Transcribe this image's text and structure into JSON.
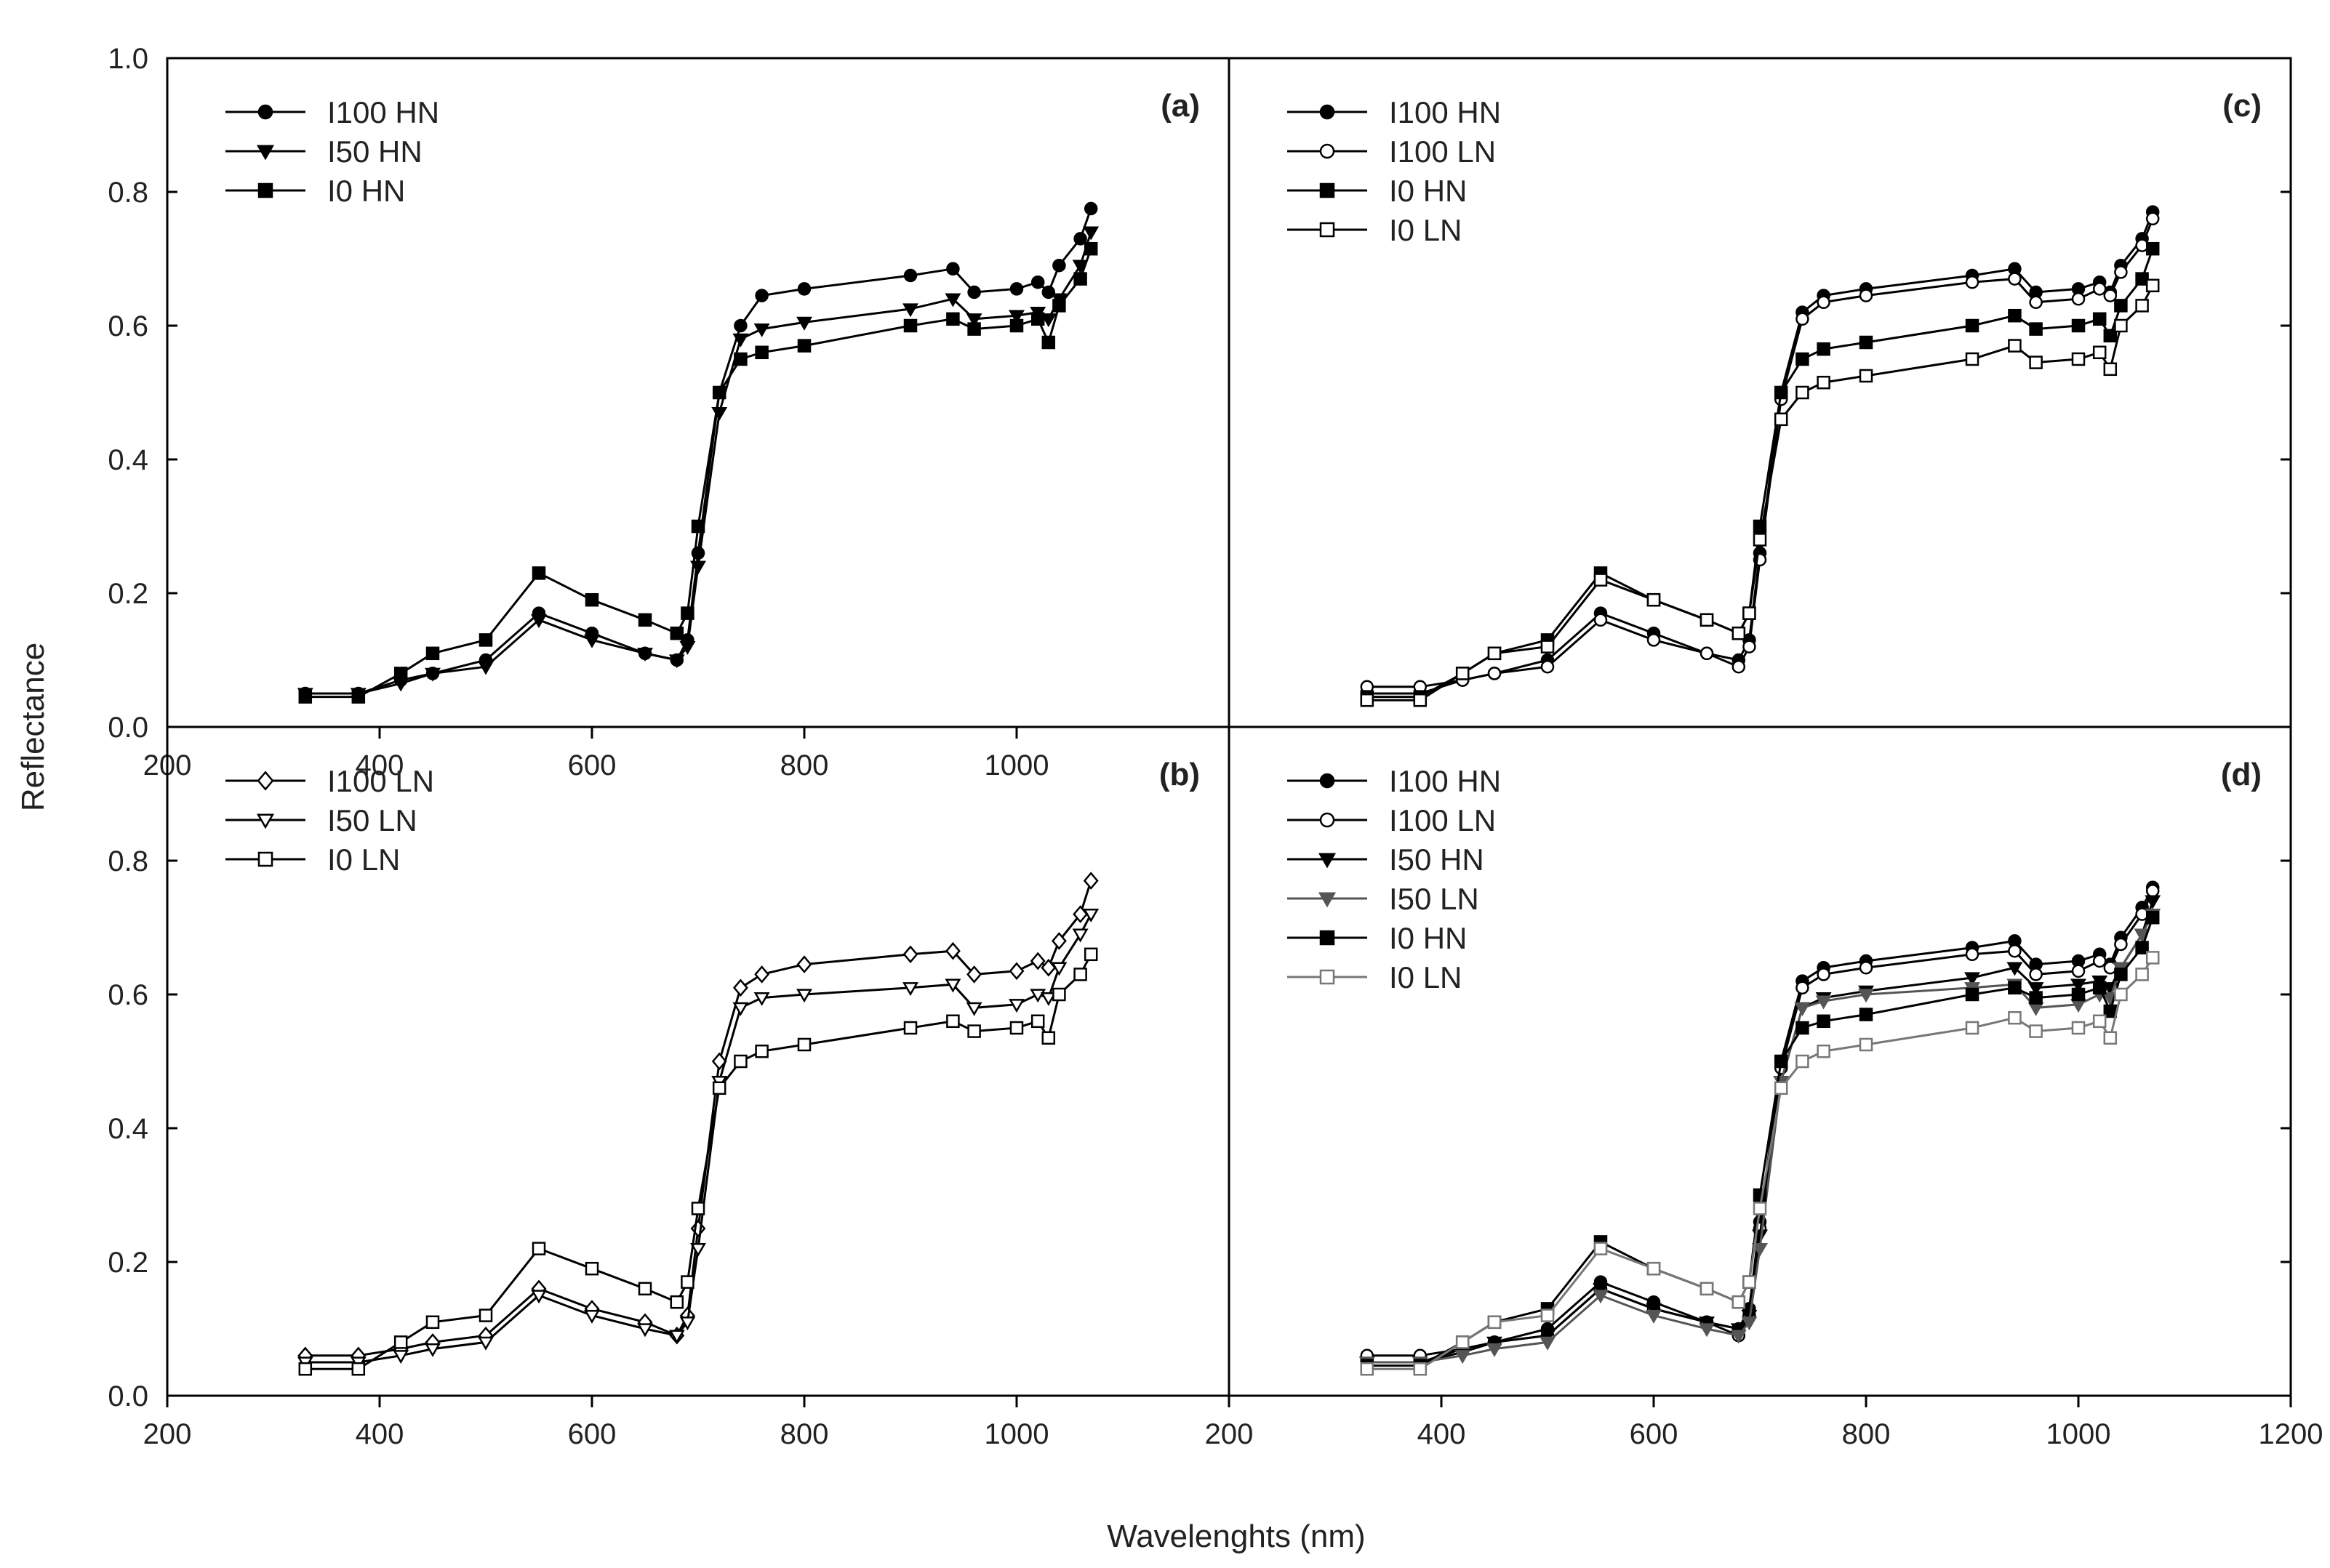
{
  "figure": {
    "x_axis_title": "Wavelenghts (nm)",
    "y_axis_title": "Reflectance"
  },
  "chart_data": [
    {
      "type": "line",
      "panel_label": "(a)",
      "xlim": [
        200,
        1200
      ],
      "ylim": [
        0.0,
        1.0
      ],
      "x_ticks": [
        "200",
        "400",
        "600",
        "800",
        "1000"
      ],
      "y_ticks": [
        "0.0",
        "0.2",
        "0.4",
        "0.6",
        "0.8",
        "1.0"
      ],
      "legend": [
        "I100 HN",
        "I50 HN",
        "I0 HN"
      ],
      "legend_position": "top-left",
      "x": [
        330,
        380,
        420,
        450,
        500,
        550,
        600,
        650,
        680,
        690,
        700,
        720,
        740,
        760,
        800,
        900,
        940,
        960,
        1000,
        1020,
        1030,
        1040,
        1060,
        1070
      ],
      "series": [
        {
          "name": "I100 HN",
          "color": "#000000",
          "marker": "circle",
          "fill": "filled",
          "values": [
            0.05,
            0.05,
            0.07,
            0.08,
            0.1,
            0.17,
            0.14,
            0.11,
            0.1,
            0.13,
            0.26,
            0.5,
            0.6,
            0.645,
            0.655,
            0.675,
            0.685,
            0.65,
            0.655,
            0.665,
            0.65,
            0.69,
            0.73,
            0.775
          ]
        },
        {
          "name": "I50 HN",
          "color": "#000000",
          "marker": "triangle-down",
          "fill": "filled",
          "values": [
            0.05,
            0.05,
            0.065,
            0.08,
            0.09,
            0.16,
            0.13,
            0.11,
            0.1,
            0.12,
            0.24,
            0.47,
            0.58,
            0.595,
            0.605,
            0.625,
            0.64,
            0.61,
            0.615,
            0.62,
            0.61,
            0.64,
            0.69,
            0.74
          ]
        },
        {
          "name": "I0 HN",
          "color": "#000000",
          "marker": "square",
          "fill": "filled",
          "values": [
            0.045,
            0.045,
            0.08,
            0.11,
            0.13,
            0.23,
            0.19,
            0.16,
            0.14,
            0.17,
            0.3,
            0.5,
            0.55,
            0.56,
            0.57,
            0.6,
            0.61,
            0.595,
            0.6,
            0.61,
            0.575,
            0.63,
            0.67,
            0.715
          ]
        }
      ]
    },
    {
      "type": "line",
      "panel_label": "(b)",
      "xlim": [
        200,
        1200
      ],
      "ylim": [
        0.0,
        1.0
      ],
      "x_ticks": [
        "200",
        "400",
        "600",
        "800",
        "1000"
      ],
      "y_ticks": [
        "0.0",
        "0.2",
        "0.4",
        "0.6",
        "0.8"
      ],
      "legend": [
        "I100 LN",
        "I50 LN",
        "I0 LN"
      ],
      "legend_position": "top-left",
      "x": [
        330,
        380,
        420,
        450,
        500,
        550,
        600,
        650,
        680,
        690,
        700,
        720,
        740,
        760,
        800,
        900,
        940,
        960,
        1000,
        1020,
        1030,
        1040,
        1060,
        1070
      ],
      "series": [
        {
          "name": "I100 LN",
          "color": "#000000",
          "marker": "diamond",
          "fill": "open",
          "values": [
            0.06,
            0.06,
            0.07,
            0.08,
            0.09,
            0.16,
            0.13,
            0.11,
            0.09,
            0.12,
            0.25,
            0.5,
            0.61,
            0.63,
            0.645,
            0.66,
            0.665,
            0.63,
            0.635,
            0.65,
            0.64,
            0.68,
            0.72,
            0.77
          ]
        },
        {
          "name": "I50 LN",
          "color": "#000000",
          "marker": "triangle-down",
          "fill": "open",
          "values": [
            0.05,
            0.05,
            0.06,
            0.07,
            0.08,
            0.15,
            0.12,
            0.1,
            0.09,
            0.11,
            0.22,
            0.47,
            0.58,
            0.595,
            0.6,
            0.61,
            0.615,
            0.58,
            0.585,
            0.6,
            0.595,
            0.64,
            0.69,
            0.72
          ]
        },
        {
          "name": "I0 LN",
          "color": "#000000",
          "marker": "square",
          "fill": "open",
          "values": [
            0.04,
            0.04,
            0.08,
            0.11,
            0.12,
            0.22,
            0.19,
            0.16,
            0.14,
            0.17,
            0.28,
            0.46,
            0.5,
            0.515,
            0.525,
            0.55,
            0.56,
            0.545,
            0.55,
            0.56,
            0.535,
            0.6,
            0.63,
            0.66
          ]
        }
      ]
    },
    {
      "type": "line",
      "panel_label": "(c)",
      "xlim": [
        200,
        1200
      ],
      "ylim": [
        0.0,
        1.0
      ],
      "x_ticks": [],
      "y_ticks": [],
      "legend": [
        "I100 HN",
        "I100 LN",
        "I0 HN",
        "I0 LN"
      ],
      "legend_position": "top-left",
      "x": [
        330,
        380,
        420,
        450,
        500,
        550,
        600,
        650,
        680,
        690,
        700,
        720,
        740,
        760,
        800,
        900,
        940,
        960,
        1000,
        1020,
        1030,
        1040,
        1060,
        1070
      ],
      "series": [
        {
          "name": "I100 HN",
          "color": "#000000",
          "marker": "circle",
          "fill": "filled",
          "values": [
            0.05,
            0.05,
            0.07,
            0.08,
            0.1,
            0.17,
            0.14,
            0.11,
            0.1,
            0.13,
            0.26,
            0.5,
            0.62,
            0.645,
            0.655,
            0.675,
            0.685,
            0.65,
            0.655,
            0.665,
            0.65,
            0.69,
            0.73,
            0.77
          ]
        },
        {
          "name": "I100 LN",
          "color": "#000000",
          "marker": "circle",
          "fill": "open",
          "values": [
            0.06,
            0.06,
            0.07,
            0.08,
            0.09,
            0.16,
            0.13,
            0.11,
            0.09,
            0.12,
            0.25,
            0.49,
            0.61,
            0.635,
            0.645,
            0.665,
            0.67,
            0.635,
            0.64,
            0.655,
            0.645,
            0.68,
            0.72,
            0.76
          ]
        },
        {
          "name": "I0 HN",
          "color": "#000000",
          "marker": "square",
          "fill": "filled",
          "values": [
            0.045,
            0.045,
            0.08,
            0.11,
            0.13,
            0.23,
            0.19,
            0.16,
            0.14,
            0.17,
            0.3,
            0.5,
            0.55,
            0.565,
            0.575,
            0.6,
            0.615,
            0.595,
            0.6,
            0.61,
            0.585,
            0.63,
            0.67,
            0.715
          ]
        },
        {
          "name": "I0 LN",
          "color": "#000000",
          "marker": "square",
          "fill": "open",
          "values": [
            0.04,
            0.04,
            0.08,
            0.11,
            0.12,
            0.22,
            0.19,
            0.16,
            0.14,
            0.17,
            0.28,
            0.46,
            0.5,
            0.515,
            0.525,
            0.55,
            0.57,
            0.545,
            0.55,
            0.56,
            0.535,
            0.6,
            0.63,
            0.66
          ]
        }
      ]
    },
    {
      "type": "line",
      "panel_label": "(d)",
      "xlim": [
        200,
        1200
      ],
      "ylim": [
        0.0,
        1.0
      ],
      "x_ticks": [
        "200",
        "400",
        "600",
        "800",
        "1000",
        "1200"
      ],
      "y_ticks": [],
      "legend": [
        "I100 HN",
        "I100 LN",
        "I50 HN",
        "I50 LN",
        "I0 HN",
        "I0 LN"
      ],
      "legend_position": "top-left",
      "x": [
        330,
        380,
        420,
        450,
        500,
        550,
        600,
        650,
        680,
        690,
        700,
        720,
        740,
        760,
        800,
        900,
        940,
        960,
        1000,
        1020,
        1030,
        1040,
        1060,
        1070
      ],
      "series": [
        {
          "name": "I100 HN",
          "color": "#000000",
          "marker": "circle",
          "fill": "filled",
          "values": [
            0.05,
            0.05,
            0.07,
            0.08,
            0.1,
            0.17,
            0.14,
            0.11,
            0.1,
            0.13,
            0.26,
            0.5,
            0.62,
            0.64,
            0.65,
            0.67,
            0.68,
            0.645,
            0.65,
            0.66,
            0.645,
            0.685,
            0.73,
            0.76
          ]
        },
        {
          "name": "I100 LN",
          "color": "#000000",
          "marker": "circle",
          "fill": "open",
          "values": [
            0.06,
            0.06,
            0.07,
            0.08,
            0.09,
            0.16,
            0.13,
            0.11,
            0.09,
            0.12,
            0.25,
            0.49,
            0.61,
            0.63,
            0.64,
            0.66,
            0.665,
            0.63,
            0.635,
            0.65,
            0.64,
            0.675,
            0.72,
            0.755
          ]
        },
        {
          "name": "I50 HN",
          "color": "#000000",
          "marker": "triangle-down",
          "fill": "filled",
          "values": [
            0.05,
            0.05,
            0.065,
            0.08,
            0.09,
            0.16,
            0.13,
            0.11,
            0.1,
            0.12,
            0.24,
            0.47,
            0.58,
            0.595,
            0.605,
            0.625,
            0.64,
            0.61,
            0.615,
            0.62,
            0.61,
            0.64,
            0.69,
            0.74
          ]
        },
        {
          "name": "I50 LN",
          "color": "#555555",
          "marker": "triangle-down",
          "fill": "filled",
          "values": [
            0.05,
            0.05,
            0.06,
            0.07,
            0.08,
            0.15,
            0.12,
            0.1,
            0.09,
            0.11,
            0.22,
            0.47,
            0.58,
            0.59,
            0.6,
            0.61,
            0.615,
            0.58,
            0.585,
            0.6,
            0.595,
            0.64,
            0.69,
            0.72
          ]
        },
        {
          "name": "I0 HN",
          "color": "#000000",
          "marker": "square",
          "fill": "filled",
          "values": [
            0.045,
            0.045,
            0.08,
            0.11,
            0.13,
            0.23,
            0.19,
            0.16,
            0.14,
            0.17,
            0.3,
            0.5,
            0.55,
            0.56,
            0.57,
            0.6,
            0.61,
            0.595,
            0.6,
            0.61,
            0.575,
            0.63,
            0.67,
            0.715
          ]
        },
        {
          "name": "I0 LN",
          "color": "#777777",
          "marker": "square",
          "fill": "open",
          "values": [
            0.04,
            0.04,
            0.08,
            0.11,
            0.12,
            0.22,
            0.19,
            0.16,
            0.14,
            0.17,
            0.28,
            0.46,
            0.5,
            0.515,
            0.525,
            0.55,
            0.565,
            0.545,
            0.55,
            0.56,
            0.535,
            0.6,
            0.63,
            0.655
          ]
        }
      ]
    }
  ]
}
